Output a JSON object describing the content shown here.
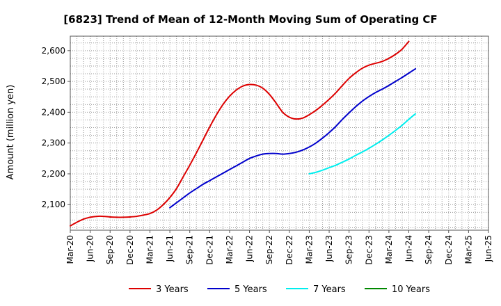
{
  "chart_data": {
    "type": "line",
    "title": "[6823]  Trend of Mean of 12-Month Moving Sum of Operating CF",
    "xlabel": "",
    "ylabel": "Amount (million yen)",
    "x_ticks": [
      "Mar-20",
      "Jun-20",
      "Sep-20",
      "Dec-20",
      "Mar-21",
      "Jun-21",
      "Sep-21",
      "Dec-21",
      "Mar-22",
      "Jun-22",
      "Sep-22",
      "Dec-22",
      "Mar-23",
      "Jun-23",
      "Sep-23",
      "Dec-23",
      "Mar-24",
      "Jun-24",
      "Sep-24",
      "Dec-24",
      "Mar-25",
      "Jun-25"
    ],
    "y_ticks": [
      2100,
      2200,
      2300,
      2400,
      2500,
      2600
    ],
    "y_tick_labels": [
      "2,100",
      "2,200",
      "2,300",
      "2,400",
      "2,500",
      "2,600"
    ],
    "ylim": [
      2017,
      2647
    ],
    "xlim": [
      0,
      63
    ],
    "grid": true,
    "legend_position": "bottom",
    "series": [
      {
        "name": "3 Years",
        "color": "#dd0000",
        "start_index": 0,
        "values": [
          2031,
          2043,
          2053,
          2059,
          2062,
          2062,
          2060,
          2059,
          2059,
          2060,
          2062,
          2066,
          2071,
          2082,
          2100,
          2123,
          2152,
          2190,
          2228,
          2268,
          2310,
          2352,
          2391,
          2425,
          2452,
          2472,
          2485,
          2490,
          2488,
          2478,
          2458,
          2430,
          2400,
          2384,
          2378,
          2381,
          2392,
          2406,
          2423,
          2442,
          2463,
          2487,
          2510,
          2528,
          2543,
          2553,
          2559,
          2565,
          2575,
          2588,
          2605,
          2630
        ]
      },
      {
        "name": "5 Years",
        "color": "#0000cc",
        "start_index": 15,
        "values": [
          2090,
          2106,
          2122,
          2138,
          2152,
          2166,
          2178,
          2190,
          2202,
          2214,
          2226,
          2238,
          2250,
          2258,
          2264,
          2266,
          2266,
          2264,
          2266,
          2270,
          2277,
          2287,
          2300,
          2316,
          2334,
          2354,
          2377,
          2398,
          2418,
          2436,
          2451,
          2464,
          2475,
          2487,
          2500,
          2513,
          2527,
          2541
        ]
      },
      {
        "name": "7 Years",
        "color": "#00eeee",
        "start_index": 36,
        "values": [
          2200,
          2205,
          2212,
          2220,
          2228,
          2238,
          2248,
          2260,
          2271,
          2283,
          2296,
          2310,
          2325,
          2341,
          2358,
          2377,
          2395
        ]
      },
      {
        "name": "10 Years",
        "color": "#008800",
        "start_index": 0,
        "values": []
      }
    ]
  }
}
